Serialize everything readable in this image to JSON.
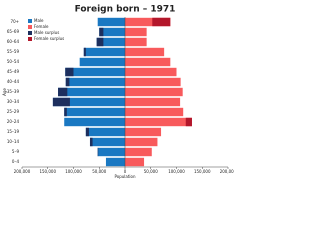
{
  "chart_data": {
    "type": "pyramid",
    "title": "Foreign born – 1971",
    "categories": [
      "0–4",
      "5–9",
      "10–14",
      "15–19",
      "20–24",
      "25–29",
      "30–34",
      "35–39",
      "40–44",
      "45–49",
      "50–54",
      "55–59",
      "60–64",
      "65–69",
      "70+"
    ],
    "series": [
      {
        "name": "Male",
        "color": "#1a78c2",
        "surplus_name": "Male surplus",
        "surplus_color": "#1d2f5e",
        "values": [
          37000,
          53000,
          68000,
          76000,
          118000,
          118000,
          140000,
          130000,
          115000,
          116000,
          88000,
          80000,
          55000,
          50000,
          53000
        ]
      },
      {
        "name": "Female",
        "color": "#f85a5c",
        "surplus_name": "Female surplus",
        "surplus_color": "#b3172b",
        "values": [
          37000,
          52000,
          63000,
          70000,
          130000,
          113000,
          107000,
          112000,
          108000,
          100000,
          88000,
          76000,
          42000,
          42000,
          88000
        ]
      }
    ],
    "xlim": [
      -200000,
      200000
    ],
    "xticks": [
      {
        "value": -200000,
        "label": "200,000"
      },
      {
        "value": -150000,
        "label": "150,000"
      },
      {
        "value": -100000,
        "label": "100,000"
      },
      {
        "value": -50000,
        "label": "50,000"
      },
      0,
      {
        "value": 50000,
        "label": "50,000"
      },
      {
        "value": 100000,
        "label": "100,000"
      },
      {
        "value": 150000,
        "label": "150,000"
      },
      {
        "value": 200000,
        "label": "200,000"
      }
    ],
    "xlabel": "Population",
    "ylabel": "Age",
    "legend": "upper left"
  }
}
